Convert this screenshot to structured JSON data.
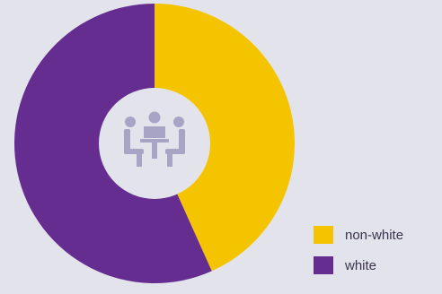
{
  "chart_data": {
    "type": "donut",
    "series": [
      {
        "name": "non-white",
        "value": 43.3,
        "color": "#f5c400"
      },
      {
        "name": "white",
        "value": 56.7,
        "color": "#652d90"
      }
    ],
    "center_icon": "meeting-table-icon",
    "center_icon_color": "#a7a4c6",
    "background_color": "#e3e3ec",
    "legend_position": "bottom-right"
  },
  "legend": {
    "items": [
      {
        "label": "non-white",
        "color": "#f5c400"
      },
      {
        "label": "white",
        "color": "#652d90"
      }
    ]
  }
}
